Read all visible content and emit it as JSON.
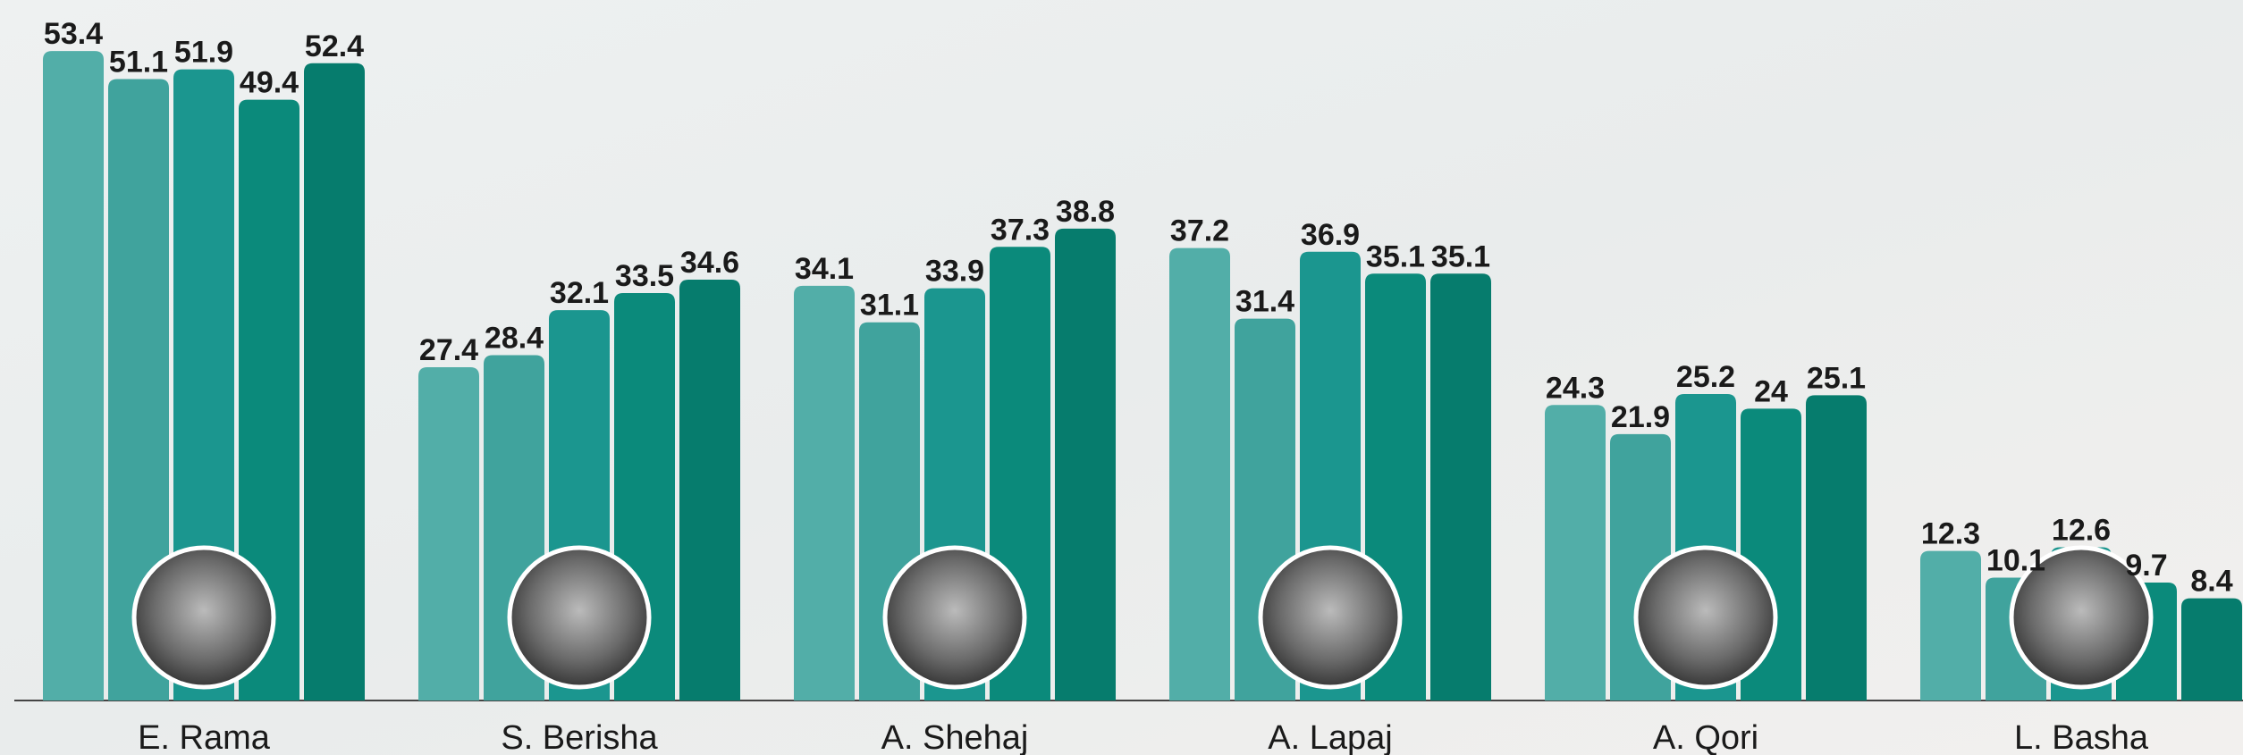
{
  "chart_data": {
    "type": "bar",
    "categories": [
      "E. Rama",
      "S. Berisha",
      "A. Shehaj",
      "A. Lapaj",
      "A. Qori",
      "L. Basha"
    ],
    "series": [
      {
        "color": "#52aea8",
        "values": [
          53.4,
          27.4,
          34.1,
          37.2,
          24.3,
          12.3
        ]
      },
      {
        "color": "#40a39d",
        "values": [
          51.1,
          28.4,
          31.1,
          31.4,
          21.9,
          10.1
        ]
      },
      {
        "color": "#1b968f",
        "values": [
          51.9,
          32.1,
          33.9,
          36.9,
          25.2,
          12.6
        ]
      },
      {
        "color": "#0b8a7b",
        "values": [
          49.4,
          33.5,
          37.3,
          35.1,
          24,
          9.7
        ]
      },
      {
        "color": "#067c6d",
        "values": [
          52.4,
          34.6,
          38.8,
          35.1,
          25.1,
          8.4
        ]
      }
    ],
    "ylim": [
      0,
      57.6
    ]
  }
}
